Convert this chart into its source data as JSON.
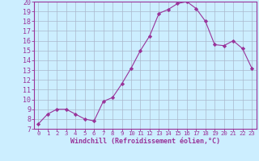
{
  "x": [
    0,
    1,
    2,
    3,
    4,
    5,
    6,
    7,
    8,
    9,
    10,
    11,
    12,
    13,
    14,
    15,
    16,
    17,
    18,
    19,
    20,
    21,
    22,
    23
  ],
  "y": [
    7.5,
    8.5,
    9.0,
    9.0,
    8.5,
    8.0,
    7.8,
    9.8,
    10.2,
    11.6,
    13.2,
    15.0,
    16.5,
    18.8,
    19.2,
    19.8,
    20.0,
    19.3,
    18.0,
    15.6,
    15.5,
    16.0,
    15.2,
    13.2
  ],
  "line_color": "#993399",
  "marker": "D",
  "marker_size": 2.2,
  "bg_color": "#cceeff",
  "grid_color": "#aab8cc",
  "xlabel": "Windchill (Refroidissement éolien,°C)",
  "ylim": [
    7,
    20
  ],
  "xlim": [
    -0.5,
    23.5
  ],
  "yticks": [
    7,
    8,
    9,
    10,
    11,
    12,
    13,
    14,
    15,
    16,
    17,
    18,
    19,
    20
  ],
  "xticks": [
    0,
    1,
    2,
    3,
    4,
    5,
    6,
    7,
    8,
    9,
    10,
    11,
    12,
    13,
    14,
    15,
    16,
    17,
    18,
    19,
    20,
    21,
    22,
    23
  ],
  "tick_color": "#993399",
  "label_color": "#993399",
  "axis_color": "#993399",
  "xlabel_fontsize": 6.0,
  "ytick_fontsize": 6.0,
  "xtick_fontsize": 5.2
}
